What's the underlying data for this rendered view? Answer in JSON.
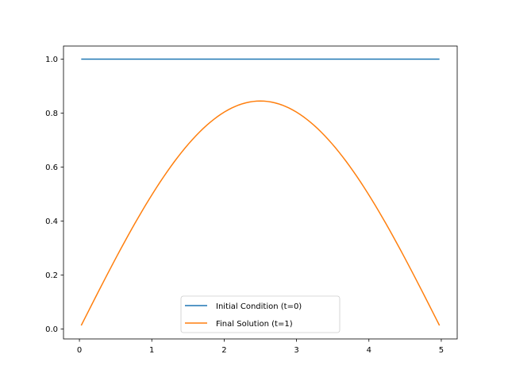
{
  "chart_data": {
    "type": "line",
    "title": "",
    "xlabel": "",
    "ylabel": "",
    "xlim": [
      -0.22,
      5.22
    ],
    "ylim": [
      -0.0367,
      1.0487
    ],
    "xticks": [
      "0",
      "1",
      "2",
      "3",
      "4",
      "5"
    ],
    "yticks": [
      "0.0",
      "0.2",
      "0.4",
      "0.6",
      "0.8",
      "1.0"
    ],
    "grid": false,
    "legend_position": "lower center",
    "series": [
      {
        "name": "Initial Condition (t=0)",
        "color": "#1f77b4",
        "x": [
          0.025,
          0.5,
          1.0,
          1.5,
          2.0,
          2.5,
          3.0,
          3.5,
          4.0,
          4.5,
          4.975
        ],
        "y": [
          1.0,
          1.0,
          1.0,
          1.0,
          1.0,
          1.0,
          1.0,
          1.0,
          1.0,
          1.0,
          1.0
        ]
      },
      {
        "name": "Final Solution (t=1)",
        "color": "#ff7f0e",
        "x": [
          0.025,
          0.25,
          0.5,
          0.75,
          1.0,
          1.25,
          1.5,
          1.75,
          2.0,
          2.25,
          2.5,
          2.75,
          3.0,
          3.25,
          3.5,
          3.75,
          4.0,
          4.25,
          4.5,
          4.75,
          4.975
        ],
        "y": [
          0.013,
          0.132,
          0.261,
          0.384,
          0.497,
          0.598,
          0.684,
          0.753,
          0.804,
          0.835,
          0.845,
          0.835,
          0.804,
          0.753,
          0.684,
          0.598,
          0.497,
          0.384,
          0.261,
          0.132,
          0.013
        ]
      }
    ]
  },
  "legend": {
    "items": [
      {
        "label": "Initial Condition (t=0)",
        "color": "#1f77b4"
      },
      {
        "label": "Final Solution (t=1)",
        "color": "#ff7f0e"
      }
    ]
  }
}
